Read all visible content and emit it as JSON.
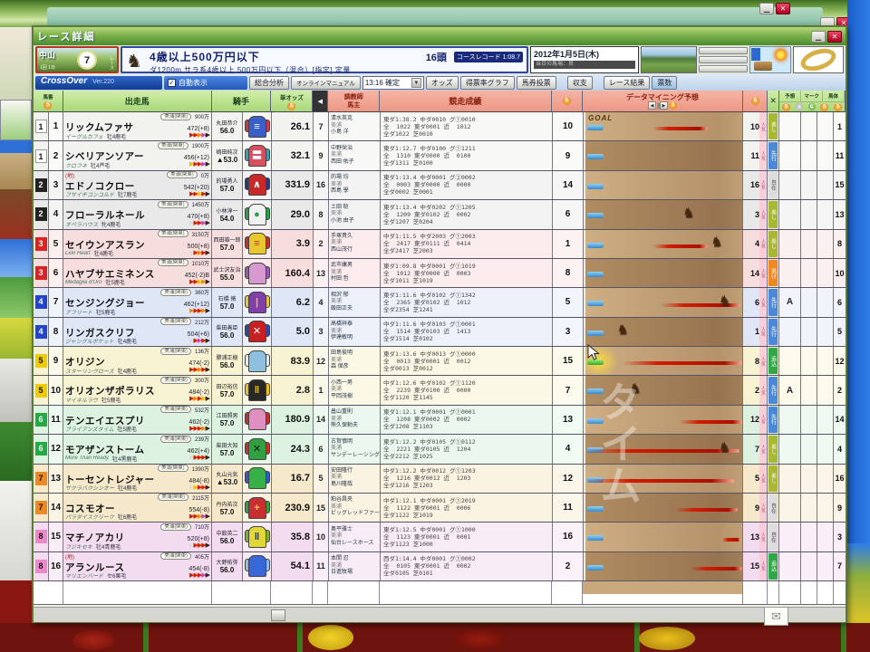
{
  "window": {
    "title": "レース詳細"
  },
  "header": {
    "course": {
      "name": "中山",
      "race_no": "7",
      "race_label": "レース",
      "meet": "1回 1日"
    },
    "race_title": "4歳以上500万円以下",
    "heads": "16頭",
    "course_record": "コースレコード 1:08.7",
    "conditions": "ダ1200m サラ系4歳以上 500万円以下（混合）[指定] 定量",
    "date": "2012年1月5日(木)",
    "date_sub": "当日の馬場：良"
  },
  "toolbar": {
    "app_name": "CrossOver",
    "version": "Ver.220",
    "auto_display": "自動表示",
    "auto_check": "✓",
    "analysis": "総合分析",
    "manual": "オンラインマニュアル",
    "time_select": "13:16 確定",
    "buttons": [
      "オッズ",
      "得票率グラフ",
      "馬券投票",
      "収支",
      "レース結果",
      "票数"
    ]
  },
  "table": {
    "headers": {
      "waku": "馬番",
      "horse": "出走馬",
      "jockey": "騎手",
      "odds": "単オッズ",
      "trainer": "調教師",
      "owner": "馬主",
      "record": "競走成績",
      "mining": "データマイニング予想",
      "goal": "GOAL",
      "marks": [
        "予想",
        "マーク",
        "馬体"
      ],
      "pop_suffix": "人気"
    },
    "legend": {
      "style_colors": {
        "逃げ": "#ee8822",
        "先行": "#4a88d8",
        "差し": "#a8b832",
        "追込": "#30a848",
        "自在": "#dddddd"
      },
      "accent_blue_bar": "#3a88c8",
      "accent_green_bar": "#3aa828",
      "accent_streak_red": "#d01c00"
    },
    "rows": [
      {
        "waku": "1",
        "num": "1",
        "waku_bg": "#ffffff",
        "waku_fg": "#111111",
        "tint": "#f2f2ee",
        "chiho": "",
        "area": "美浦(関東)",
        "money": "900万",
        "name": "リックムファサ",
        "weight": "472(+8)",
        "sire": "イーグルカフェ",
        "sex": "牡4鹿毛",
        "arrows": [
          "#cc2200",
          "#cc2200",
          "#ee8800",
          "#cc44bb",
          "#332222"
        ],
        "jockey": "丸田恭介",
        "jweight": "56.0",
        "silks": [
          "#3a5fc8",
          "#c83a4a",
          "≡",
          "#ffffff"
        ],
        "odds": "26.1",
        "odds_rank": "7",
        "trainer": "清水英克",
        "t_area": "美浦",
        "owner": "小島 洋",
        "record": [
          "東ダ1:38.2 中ダ0010 グ①0010",
          "全  1022 東ダ0001 近  1012",
          "全ダ1022 芝0010"
        ],
        "rank_dm": "10",
        "streak": [
          43,
          78
        ],
        "horse": null,
        "glow": false,
        "bar": "blue",
        "pop": "10",
        "style": "差し",
        "mark_a": "",
        "rank_r": "1"
      },
      {
        "waku": "1",
        "num": "2",
        "waku_bg": "#ffffff",
        "waku_fg": "#111111",
        "tint": "#f2f2ee",
        "chiho": "",
        "area": "美浦(関東)",
        "money": "1900万",
        "name": "シベリアンソアー",
        "weight": "456(+12)",
        "sire": "クロフネ",
        "sex": "牡4芦毛",
        "arrows": [
          "#eebb00",
          "#cc2200",
          "#cc2200",
          "#cc44bb",
          "#332222"
        ],
        "jockey": "嶋田純次",
        "jweight": "▲53.0",
        "silks": [
          "#d85060",
          "#38a0a8",
          "〓",
          "#ffffff"
        ],
        "odds": "32.1",
        "odds_rank": "9",
        "trainer": "中野栄治",
        "t_area": "美浦",
        "owner": "西田 佑子",
        "record": [
          "東ダ1:12.7 中ダ0100 グ①1211",
          "全  1310 東ダ0000 近  0100",
          "全ダ1311 芝0100"
        ],
        "rank_dm": "9",
        "streak": null,
        "horse": null,
        "glow": false,
        "bar": "blue",
        "pop": "11",
        "style": "先行",
        "mark_a": "",
        "rank_r": "11"
      },
      {
        "waku": "2",
        "num": "3",
        "waku_bg": "#222222",
        "waku_fg": "#ffffff",
        "tint": "#e9e9e9",
        "chiho": "(地)",
        "area": "美浦(関東)",
        "money": "0万",
        "name": "エドノコクロー",
        "weight": "542(+20)",
        "sire": "フサイチコンコルド",
        "sex": "牡7鹿毛",
        "arrows": [
          "#cc2200",
          "#cc2200",
          "#eebb00",
          "#cc2200",
          "#332222"
        ],
        "jockey": "的場勇人",
        "jweight": "57.0",
        "silks": [
          "#c82828",
          "#283878",
          "∧",
          "#ffffff"
        ],
        "odds": "331.9",
        "odds_rank": "16",
        "trainer": "的場 均",
        "t_area": "美浦",
        "owner": "西島 學",
        "record": [
          "東ダ1:13.4 中ダ0001 グ②0002",
          "全  0003 東ダ0000 近  0000",
          "全ダ0002 芝0001"
        ],
        "rank_dm": "14",
        "streak": null,
        "horse": null,
        "glow": false,
        "bar": "blue",
        "pop": "16",
        "style": "自在",
        "mark_a": "",
        "rank_r": "15"
      },
      {
        "waku": "2",
        "num": "4",
        "waku_bg": "#222222",
        "waku_fg": "#ffffff",
        "tint": "#e9e9e9",
        "chiho": "",
        "area": "美浦(関東)",
        "money": "1450万",
        "name": "フローラルネール",
        "weight": "470(+8)",
        "sire": "オペラハウス",
        "sex": "牝4鹿毛",
        "arrows": [
          "#dddddd",
          "#cc2200",
          "#cc2200",
          "#cc44bb",
          "#332222"
        ],
        "jockey": "小林淳一",
        "jweight": "54.0",
        "silks": [
          "#f0f0f0",
          "#28a048",
          "●",
          "#28a048"
        ],
        "odds": "29.0",
        "odds_rank": "8",
        "trainer": "土田 稔",
        "t_area": "美浦",
        "owner": "小池 由子",
        "record": [
          "東ダ1:13.4 中ダ0202 グ①1205",
          "全  1209 東ダ0102 近  0002",
          "全ダ1207 芝0204"
        ],
        "rank_dm": "6",
        "streak": null,
        "horse": 62,
        "glow": false,
        "bar": "blue",
        "pop": "3",
        "style": "差し",
        "mark_a": "",
        "rank_r": "13"
      },
      {
        "waku": "3",
        "num": "5",
        "waku_bg": "#dd2222",
        "waku_fg": "#ffffff",
        "tint": "#f7dede",
        "chiho": "",
        "area": "美浦(関東)",
        "money": "3150万",
        "name": "セイウンアスラン",
        "weight": "500(+8)",
        "sire": "Lion Heart",
        "sex": "牡4鹿毛",
        "arrows": [
          "#dddddd",
          "#cc2200",
          "#ee8800",
          "#cc2200",
          "#332222"
        ],
        "jockey": "西田雄一郎",
        "jweight": "57.0",
        "silks": [
          "#e8c830",
          "#c83030",
          "≡",
          "#c83030"
        ],
        "odds": "3.9",
        "odds_rank": "2",
        "trainer": "手塚貴久",
        "t_area": "美浦",
        "owner": "西山茂行",
        "record": [
          "中ダ1:11.5 中ダ2003 グ①2003",
          "全  2417 東ダ0111 近  0414",
          "全ダ2417 芝2003"
        ],
        "rank_dm": "1",
        "streak": [
          43,
          78
        ],
        "horse": 80,
        "glow": false,
        "bar": "blue",
        "pop": "4",
        "style": "差し",
        "mark_a": "",
        "rank_r": "8"
      },
      {
        "waku": "3",
        "num": "6",
        "waku_bg": "#dd2222",
        "waku_fg": "#ffffff",
        "tint": "#f7dede",
        "chiho": "",
        "area": "美浦(関東)",
        "money": "1010万",
        "name": "ハヤブサエミネンス",
        "weight": "452(-2)B",
        "sire": "Medaglia d'Oro",
        "sex": "牡5鹿毛",
        "arrows": [
          "#cc2200",
          "#cc2200",
          "#eebb00",
          "#ee8800",
          "#332222"
        ],
        "jockey": "武士沢友治",
        "jweight": "55.0",
        "silks": [
          "#d898d0",
          "#9858b8",
          "",
          "#ffffff"
        ],
        "odds": "160.4",
        "odds_rank": "13",
        "trainer": "武市康男",
        "t_area": "美浦",
        "owner": "村田 哲",
        "record": [
          "東ダ1:09.8 中ダ0001 グ①1019",
          "全  1012 東ダ0000 近  0003",
          "全ダ1011 芝1019"
        ],
        "rank_dm": "8",
        "streak": null,
        "horse": null,
        "glow": false,
        "bar": "blue",
        "pop": "14",
        "style": "逃げ",
        "mark_a": "",
        "rank_r": "10"
      },
      {
        "waku": "4",
        "num": "7",
        "waku_bg": "#2244cc",
        "waku_fg": "#ffffff",
        "tint": "#dfe6f6",
        "chiho": "",
        "area": "美浦(関東)",
        "money": "360万",
        "name": "センジングジョー",
        "weight": "462(+12)",
        "sire": "アフリート",
        "sex": "牡5鹿毛",
        "arrows": [
          "#ee8800",
          "#cc2200",
          "#cc2200",
          "#ee8800",
          "#332222"
        ],
        "jockey": "石橋 脩",
        "jweight": "57.0",
        "silks": [
          "#8040a8",
          "#e0c838",
          "|",
          "#e0c838"
        ],
        "odds": "6.2",
        "odds_rank": "4",
        "trainer": "相沢 郁",
        "t_area": "美浦",
        "owner": "飯田正夫",
        "record": [
          "東ダ1:11.6 中ダ0102 グ①1342",
          "全  2365 東ダ0102 近  1012",
          "全ダ2354 芝1241"
        ],
        "rank_dm": "5",
        "streak": [
          48,
          99
        ],
        "horse": 85,
        "glow": false,
        "bar": "blue",
        "pop": "6",
        "style": "先行",
        "mark_a": "A",
        "rank_r": "6"
      },
      {
        "waku": "4",
        "num": "8",
        "waku_bg": "#2244cc",
        "waku_fg": "#ffffff",
        "tint": "#dfe6f6",
        "chiho": "",
        "area": "美浦(関東)",
        "money": "212万",
        "name": "リンガスクリフ",
        "weight": "504(+6)",
        "sire": "ジャングルポケット",
        "sex": "牡4鹿毛",
        "arrows": [
          "#dddddd",
          "#cc2200",
          "#cc44bb",
          "#cc2200",
          "#332222"
        ],
        "jockey": "柴田善臣",
        "jweight": "56.0",
        "silks": [
          "#c82020",
          "#2848b0",
          "✕",
          "#ffffff"
        ],
        "odds": "5.0",
        "odds_rank": "3",
        "trainer": "高橋祥泰",
        "t_area": "美浦",
        "owner": "伊達敏明",
        "record": [
          "中ダ1:11.6 中ダ0103 グ①0001",
          "全  1514 東ダ0103 近  1413",
          "全ダ1514 芝0102"
        ],
        "rank_dm": "3",
        "streak": null,
        "horse": 20,
        "glow": false,
        "bar": "blue",
        "pop": "1",
        "style": "先行",
        "mark_a": "",
        "rank_r": "5"
      },
      {
        "waku": "5",
        "num": "9",
        "waku_bg": "#eecc00",
        "waku_fg": "#111111",
        "tint": "#f7f3d2",
        "chiho": "",
        "area": "美浦(関東)",
        "money": "136万",
        "name": "オリジン",
        "weight": "474(-2)",
        "sire": "スターリングローズ",
        "sex": "牡4鹿毛",
        "arrows": [
          "#cc2200",
          "#cc2200",
          "#ee8800",
          "#cc2200",
          "#332222"
        ],
        "jockey": "勝浦正樹",
        "jweight": "56.0",
        "silks": [
          "#90c0e0",
          "#e8e8e8",
          "",
          "#ffffff"
        ],
        "odds": "83.9",
        "odds_rank": "12",
        "trainer": "田島俊明",
        "t_area": "美浦",
        "owner": "森 保彦",
        "record": [
          "東ダ1:13.6 中ダ0013 グ①0000",
          "全  0013 東ダ0001 近  0012",
          "全ダ0013 芝0012"
        ],
        "rank_dm": "15",
        "streak": [
          23,
          100
        ],
        "horse": null,
        "glow": true,
        "bar": "green",
        "pop": "8",
        "style": "追込",
        "mark_a": "",
        "rank_r": "12"
      },
      {
        "waku": "5",
        "num": "10",
        "waku_bg": "#eecc00",
        "waku_fg": "#111111",
        "tint": "#f7f3d2",
        "chiho": "",
        "area": "美浦(関東)",
        "money": "300万",
        "name": "オリオンザポラリス",
        "weight": "484(-2)",
        "sire": "マイネルラヴ",
        "sex": "牡5鹿毛",
        "arrows": [
          "#cc2200",
          "#ee8800",
          "#cc2200",
          "#eebb00",
          "#332222"
        ],
        "jockey": "田辺裕信",
        "jweight": "57.0",
        "silks": [
          "#282828",
          "#e8c020",
          "ǁ",
          "#e8c020"
        ],
        "odds": "2.8",
        "odds_rank": "1",
        "trainer": "小西一男",
        "t_area": "美浦",
        "owner": "平岡茂樹",
        "record": [
          "中ダ1:12.6 中ダ0102 グ①1120",
          "全  2239 東ダ0100 近  0000",
          "全ダ1120 芝1145"
        ],
        "rank_dm": "7",
        "streak": null,
        "horse": 28,
        "glow": false,
        "bar": "blue",
        "pop": "2",
        "style": "先行",
        "mark_a": "A",
        "rank_r": "2"
      },
      {
        "waku": "6",
        "num": "11",
        "waku_bg": "#22aa44",
        "waku_fg": "#ffffff",
        "tint": "#ddf2e0",
        "chiho": "",
        "area": "美浦(関東)",
        "money": "532万",
        "name": "テンエイエスプリ",
        "weight": "462(-2)",
        "sire": "ブライアンズタイム",
        "sex": "牡5鹿毛",
        "arrows": [
          "#cc2200",
          "#cc2200",
          "#cc2200",
          "#ee8800",
          "#332222"
        ],
        "jockey": "江田照男",
        "jweight": "57.0",
        "silks": [
          "#e090c0",
          "#c03030",
          "",
          "#ffffff"
        ],
        "odds": "180.9",
        "odds_rank": "14",
        "trainer": "畠山重則",
        "t_area": "美浦",
        "owner": "熊久保勅夫",
        "record": [
          "東ダ1:12.1 中ダ0001 グ①0001",
          "全  1208 東ダ0002 近  0002",
          "全ダ1208 芝1103"
        ],
        "rank_dm": "13",
        "streak": [
          60,
          100
        ],
        "horse": null,
        "glow": false,
        "bar": "blue",
        "pop": "12",
        "style": "先行",
        "mark_a": "",
        "rank_r": "14"
      },
      {
        "waku": "6",
        "num": "12",
        "waku_bg": "#22aa44",
        "waku_fg": "#ffffff",
        "tint": "#ddf2e0",
        "chiho": "",
        "area": "美浦(関東)",
        "money": "239万",
        "name": "モアザンストーム",
        "weight": "462(+4)",
        "sire": "More Than Ready",
        "sex": "牡4黒鹿毛",
        "arrows": [
          "#dddddd",
          "#cc2200",
          "#cc2200",
          "#cc2200",
          "#332222"
        ],
        "jockey": "柴田大知",
        "jweight": "57.0",
        "silks": [
          "#30a040",
          "#c83030",
          "✕",
          "#181818"
        ],
        "odds": "24.3",
        "odds_rank": "6",
        "trainer": "古賀慎明",
        "t_area": "美浦",
        "owner": "サンデーレーシング",
        "record": [
          "東ダ1:12.2 中ダ0105 グ①0112",
          "全  2221 東ダ0105 近  1204",
          "全ダ2212 芝1025"
        ],
        "rank_dm": "4",
        "streak": [
          0,
          98
        ],
        "horse": 85,
        "glow": false,
        "bar": "blue",
        "pop": "7",
        "style": "差し",
        "mark_a": "",
        "rank_r": "4"
      },
      {
        "waku": "7",
        "num": "13",
        "waku_bg": "#ee8822",
        "waku_fg": "#111111",
        "tint": "#f6e9cb",
        "chiho": "",
        "area": "美浦(関東)",
        "money": "1390万",
        "name": "トーセントレジャー",
        "weight": "484(-8)",
        "sire": "サクラバクシンオー",
        "sex": "牡4鹿毛",
        "arrows": [
          "#dddddd",
          "#eebb00",
          "#cc2200",
          "#ee2200",
          "#332222"
        ],
        "jockey": "丸山元気",
        "jweight": "▲53.0",
        "silks": [
          "#38b048",
          "#3058c8",
          "",
          "#ffffff"
        ],
        "odds": "16.7",
        "odds_rank": "5",
        "trainer": "安田隆行",
        "t_area": "美浦",
        "owner": "島川隆哉",
        "record": [
          "中ダ1:12.2 中ダ0012 グ①1203",
          "全  1216 東ダ0012 近  1203",
          "全ダ1216 芝1203"
        ],
        "rank_dm": "12",
        "streak": [
          0,
          95
        ],
        "horse": null,
        "glow": false,
        "bar": "blue",
        "pop": "5",
        "style": "差し",
        "mark_a": "",
        "rank_r": "16"
      },
      {
        "waku": "7",
        "num": "14",
        "waku_bg": "#ee8822",
        "waku_fg": "#111111",
        "tint": "#f6e9cb",
        "chiho": "",
        "area": "美浦(関東)",
        "money": "2115万",
        "name": "コスモオー",
        "weight": "554(-8)",
        "sire": "パラダイスクリーク",
        "sex": "牡6鹿毛",
        "arrows": [
          "#cc2200",
          "#cc2200",
          "#ee8800",
          "#cc44bb",
          "#332222"
        ],
        "jockey": "丹内祐次",
        "jweight": "57.0",
        "silks": [
          "#c83030",
          "#30a040",
          "+",
          "#e8d040"
        ],
        "odds": "230.9",
        "odds_rank": "15",
        "trainer": "粕谷昌央",
        "t_area": "美浦",
        "owner": "ビッグレッドファーム",
        "record": [
          "中ダ1:12.1 中ダ0001 グ①2019",
          "全  1122 東ダ0001 近  0006",
          "全ダ1122 芝1019"
        ],
        "rank_dm": "11",
        "streak": [
          57,
          97
        ],
        "horse": null,
        "glow": false,
        "bar": "blue",
        "pop": "9",
        "style": "自在",
        "mark_a": "",
        "rank_r": "9"
      },
      {
        "waku": "8",
        "num": "15",
        "waku_bg": "#ee88cc",
        "waku_fg": "#111111",
        "tint": "#f3dcef",
        "chiho": "",
        "area": "美浦(関東)",
        "money": "710万",
        "name": "マチノアカリ",
        "weight": "520(+8)",
        "sire": "フジキセキ",
        "sex": "牡4青鹿毛",
        "arrows": [
          "#dddddd",
          "#cc2200",
          "#cc2200",
          "#cc2200",
          "#332222"
        ],
        "jockey": "中舘英二",
        "jweight": "56.0",
        "silks": [
          "#e0d838",
          "#80b030",
          "ǁ",
          "#303030"
        ],
        "odds": "35.8",
        "odds_rank": "10",
        "trainer": "奥平雅士",
        "t_area": "美浦",
        "owner": "仙台レースホース",
        "record": [
          "東ダ1:12.5 中ダ0001 グ①1000",
          "全  1123 東ダ0001 近  0001",
          "全ダ1123 芝1000"
        ],
        "rank_dm": "16",
        "streak": [
          87,
          99
        ],
        "horse": null,
        "glow": false,
        "bar": "blue",
        "pop": "13",
        "style": "自在",
        "mark_a": "",
        "rank_r": "3"
      },
      {
        "waku": "8",
        "num": "16",
        "waku_bg": "#ee88cc",
        "waku_fg": "#111111",
        "tint": "#f3dcef",
        "chiho": "(地)",
        "area": "美浦(関東)",
        "money": "405万",
        "name": "アランルース",
        "weight": "454(-8)",
        "sire": "マリエンバード",
        "sex": "セ6栗毛",
        "arrows": [
          "#cc2200",
          "#cc2200",
          "#cc2200",
          "#cc44bb",
          "#332222"
        ],
        "jockey": "大野拓弥",
        "jweight": "56.0",
        "silks": [
          "#3868d8",
          "#90b8e8",
          "",
          "#ffffff"
        ],
        "odds": "54.1",
        "odds_rank": "11",
        "trainer": "本間 忍",
        "t_area": "美浦",
        "owner": "日進牧場",
        "record": [
          "西ダ1:14.4 中ダ0001 グ①0002",
          "全  0105 東ダ0001 近  0002",
          "全ダ0105 芝0101"
        ],
        "rank_dm": "2",
        "streak": [
          67,
          100
        ],
        "horse": null,
        "glow": false,
        "bar": "blue",
        "pop": "15",
        "style": "追込",
        "mark_a": "",
        "rank_r": "7"
      }
    ]
  },
  "overlay": {
    "watermark": "タイム"
  }
}
